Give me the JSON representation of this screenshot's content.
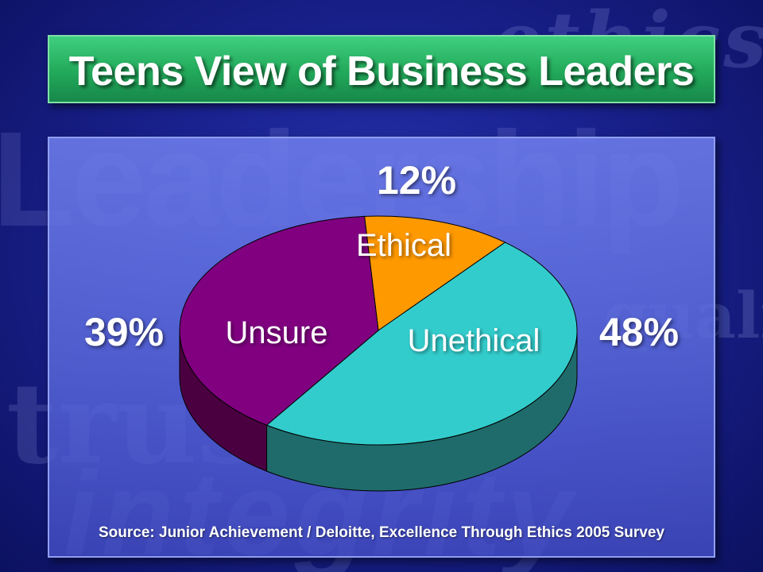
{
  "title": "Teens View of Business Leaders",
  "source": "Source: Junior Achievement / Deloitte, Excellence Through Ethics 2005 Survey",
  "watermarks": {
    "ethics": "ethics",
    "leadership": "Leadership",
    "trust": "trust",
    "integrity": "integrity",
    "quality": "quality"
  },
  "colors": {
    "background": "#1a2290",
    "title_bar": "#22a95a",
    "panel": "#6a78e6",
    "ethical": "#ff9900",
    "unethical": "#33cccc",
    "unsure": "#800080"
  },
  "chart_data": {
    "type": "pie",
    "title": "Teens View of Business Leaders",
    "slices": [
      {
        "label": "Ethical",
        "value": 12,
        "value_label": "12%",
        "color": "#ff9900",
        "side_color": "#7f4c00"
      },
      {
        "label": "Unethical",
        "value": 48,
        "value_label": "48%",
        "color": "#33cccc",
        "side_color": "#1f6b6b"
      },
      {
        "label": "Unsure",
        "value": 39,
        "value_label": "39%",
        "color": "#800080",
        "side_color": "#4a0040"
      }
    ],
    "style": "3d",
    "legend": "none"
  }
}
